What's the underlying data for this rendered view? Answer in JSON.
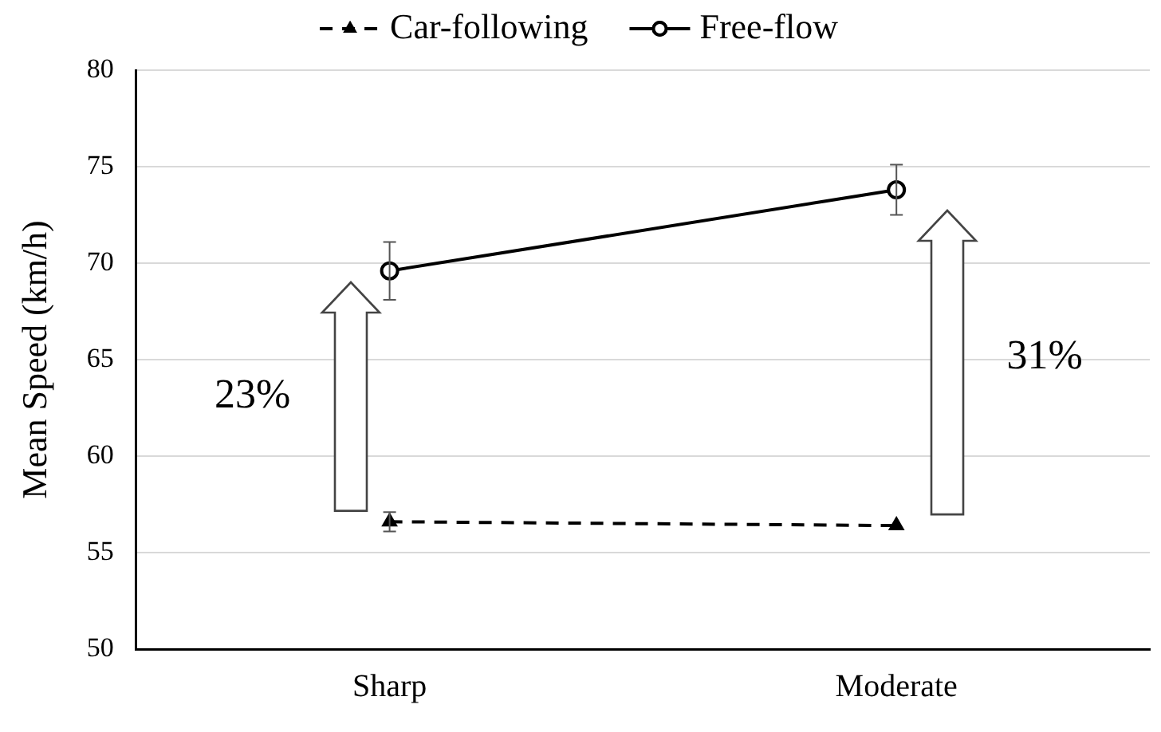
{
  "chart_data": {
    "type": "line",
    "ylabel": "Mean Speed (km/h)",
    "categories": [
      "Sharp",
      "Moderate"
    ],
    "series": [
      {
        "name": "Car-following",
        "color": "#000000",
        "values": [
          56.6,
          56.4
        ],
        "errors": [
          0.5,
          null
        ],
        "marker": "triangle",
        "line_style": "dashed"
      },
      {
        "name": "Free-flow",
        "color": "#000000",
        "values": [
          69.6,
          73.8
        ],
        "errors": [
          1.5,
          1.3
        ],
        "marker": "circle",
        "line_style": "solid"
      }
    ],
    "ylim": [
      50,
      80
    ],
    "yticks": [
      50,
      55,
      60,
      65,
      70,
      75,
      80
    ],
    "grid": "y",
    "legend": "top",
    "annotations": [
      "23%",
      "31%"
    ]
  }
}
